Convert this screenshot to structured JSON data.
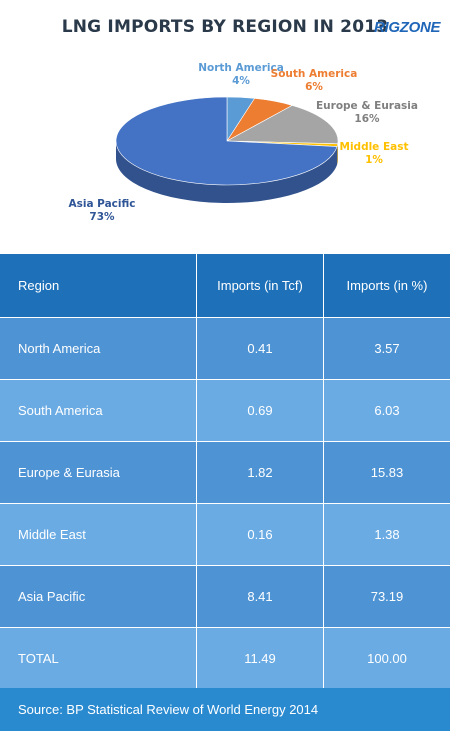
{
  "header": {
    "title": "LNG IMPORTS BY REGION IN 2013",
    "logo_text": "RIGZONE"
  },
  "colors": {
    "north_america": "#5b9bd5",
    "south_america": "#ed7d31",
    "europe_eurasia": "#a5a5a5",
    "middle_east": "#ffc000",
    "asia_pacific": "#4472c4",
    "table_header": "#1e71b8",
    "table_row_dark": "#4e93d3",
    "table_row_light": "#6aabe3",
    "source_bar": "#2a8ad0"
  },
  "chart_data": {
    "type": "pie",
    "title": "LNG IMPORTS BY REGION IN 2013",
    "categories": [
      "North America",
      "South America",
      "Europe & Eurasia",
      "Middle East",
      "Asia Pacific"
    ],
    "values": [
      4,
      6,
      16,
      1,
      73
    ],
    "value_labels": [
      "4%",
      "6%",
      "16%",
      "1%",
      "73%"
    ]
  },
  "table": {
    "headers": [
      "Region",
      "Imports (in Tcf)",
      "Imports (in %)"
    ],
    "rows": [
      {
        "region": "North America",
        "tcf": "0.41",
        "pct": "3.57"
      },
      {
        "region": "South America",
        "tcf": "0.69",
        "pct": "6.03"
      },
      {
        "region": "Europe & Eurasia",
        "tcf": "1.82",
        "pct": "15.83"
      },
      {
        "region": "Middle East",
        "tcf": "0.16",
        "pct": "1.38"
      },
      {
        "region": "Asia Pacific",
        "tcf": "8.41",
        "pct": "73.19"
      },
      {
        "region": "TOTAL",
        "tcf": "11.49",
        "pct": "100.00"
      }
    ]
  },
  "source": {
    "text": "Source: BP Statistical Review of World Energy 2014"
  }
}
